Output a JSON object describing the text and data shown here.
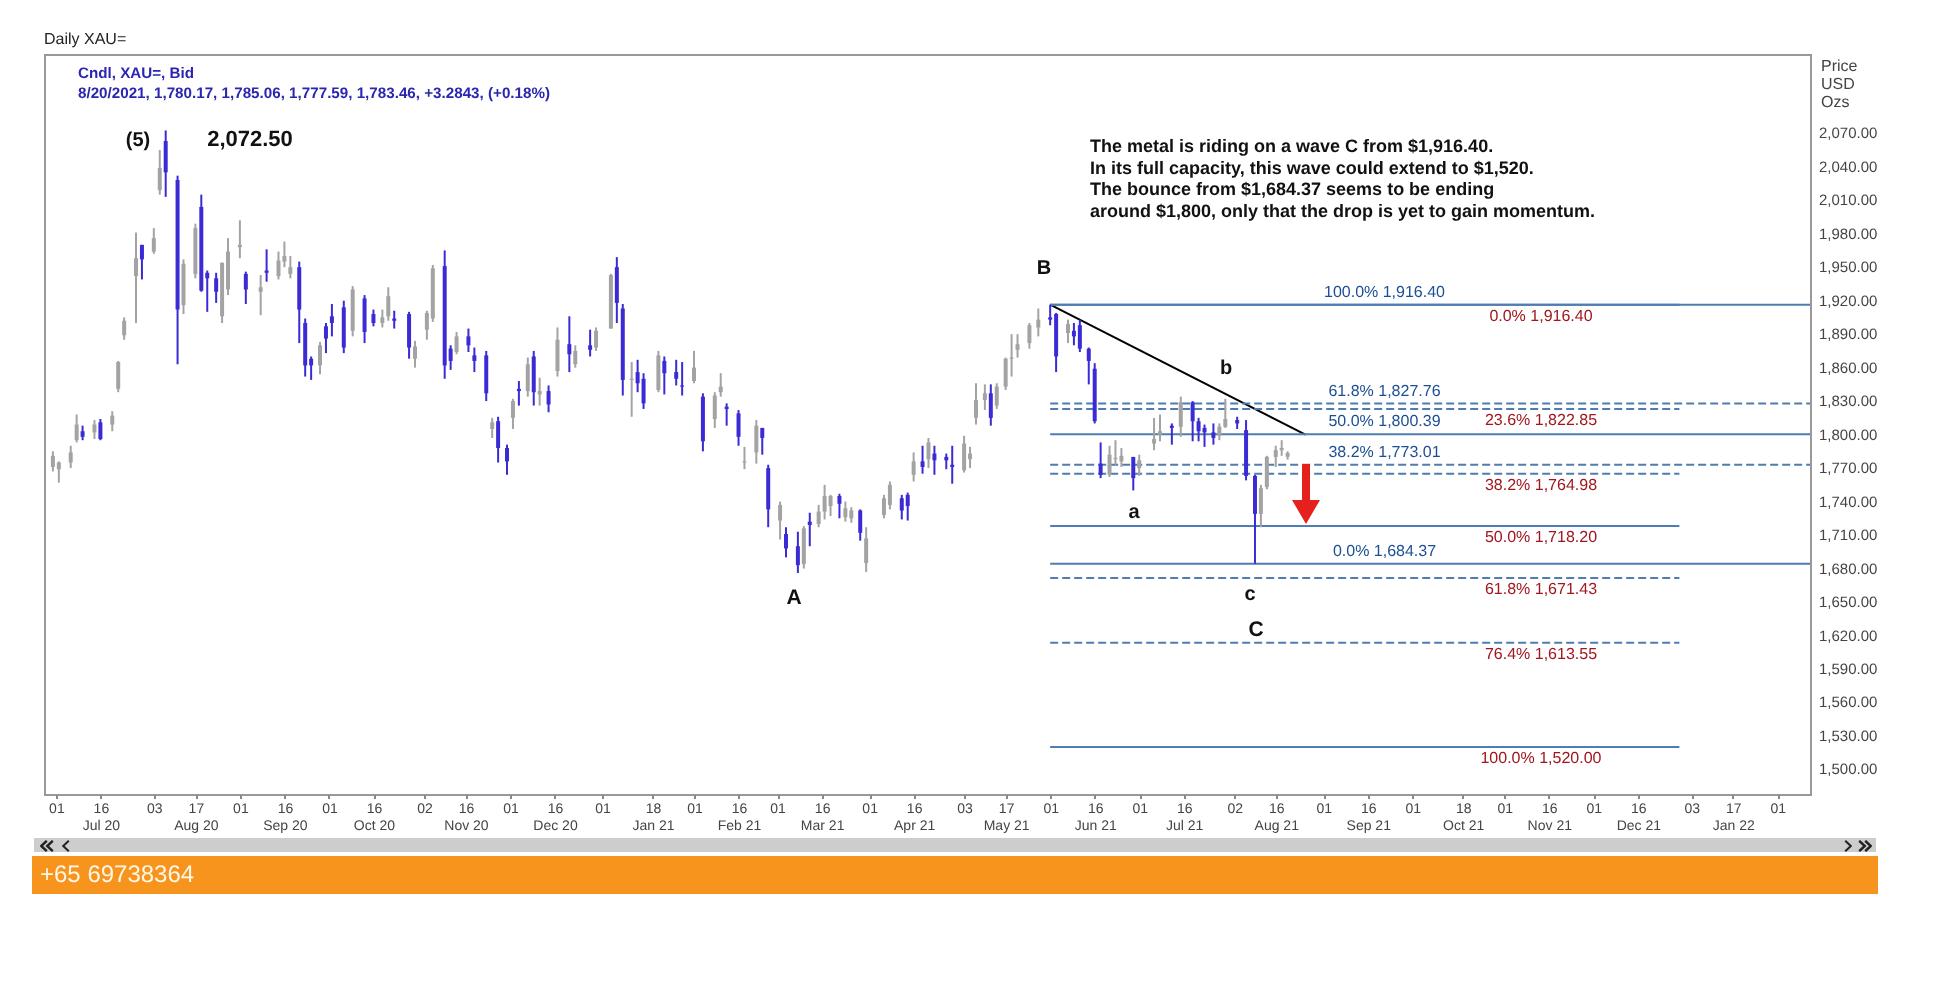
{
  "chart_data": {
    "type": "candlestick",
    "title": "Daily XAU=",
    "subtitle": "Cndl, XAU=, Bid",
    "ylabel": "Price USD Ozs",
    "annotations": [
      "8/20/2021, 1,780.17, 1,785.06, 1,777.59, 1,783.46, +3.2843, (+0.18%)",
      "(5)",
      "2,072.50",
      "B",
      "b",
      "a",
      "A",
      "c",
      "C",
      "The metal is riding on a wave C from $1,916.40.",
      "In its full capacity, this wave could extend to $1,520.",
      "The bounce from $1,684.37 seems to be ending",
      "around $1,800, only that the drop is yet to gain momentum.",
      "+65 69738364"
    ],
    "x": [
      "2020-06-30",
      "2020-07-02",
      "2020-07-06",
      "2020-07-08",
      "2020-07-10",
      "2020-07-14",
      "2020-07-16",
      "2020-07-20",
      "2020-07-22",
      "2020-07-24",
      "2020-07-28",
      "2020-07-30",
      "2020-08-03",
      "2020-08-05",
      "2020-08-07",
      "2020-08-11",
      "2020-08-13",
      "2020-08-17",
      "2020-08-19",
      "2020-08-21",
      "2020-08-24",
      "2020-08-26",
      "2020-08-28",
      "2020-09-01",
      "2020-09-03",
      "2020-09-08",
      "2020-09-10",
      "2020-09-14",
      "2020-09-16",
      "2020-09-18",
      "2020-09-21",
      "2020-09-23",
      "2020-09-25",
      "2020-09-28",
      "2020-09-30",
      "2020-10-02",
      "2020-10-06",
      "2020-10-09",
      "2020-10-13",
      "2020-10-16",
      "2020-10-19",
      "2020-10-21",
      "2020-10-23",
      "2020-10-28",
      "2020-10-30",
      "2020-11-03",
      "2020-11-05",
      "2020-11-09",
      "2020-11-11",
      "2020-11-13",
      "2020-11-17",
      "2020-11-19",
      "2020-11-23",
      "2020-11-25",
      "2020-11-27",
      "2020-11-30",
      "2020-12-02",
      "2020-12-04",
      "2020-12-07",
      "2020-12-09",
      "2020-12-11",
      "2020-12-14",
      "2020-12-17",
      "2020-12-21",
      "2020-12-23",
      "2020-12-28",
      "2020-12-30",
      "2021-01-04",
      "2021-01-06",
      "2021-01-08",
      "2021-01-11",
      "2021-01-13",
      "2021-01-15",
      "2021-01-20",
      "2021-01-22",
      "2021-01-26",
      "2021-01-28",
      "2021-02-01",
      "2021-02-04",
      "2021-02-08",
      "2021-02-10",
      "2021-02-12",
      "2021-02-16",
      "2021-02-18",
      "2021-02-22",
      "2021-02-24",
      "2021-02-26",
      "2021-03-02",
      "2021-03-04",
      "2021-03-08",
      "2021-03-10",
      "2021-03-12",
      "2021-03-15",
      "2021-03-17",
      "2021-03-19",
      "2021-03-22",
      "2021-03-24",
      "2021-03-26",
      "2021-03-29",
      "2021-03-31",
      "2021-04-06",
      "2021-04-08",
      "2021-04-12",
      "2021-04-14",
      "2021-04-16",
      "2021-04-19",
      "2021-04-21",
      "2021-04-23",
      "2021-04-27",
      "2021-04-29",
      "2021-05-03",
      "2021-05-05",
      "2021-05-07",
      "2021-05-10",
      "2021-05-12",
      "2021-05-14",
      "2021-05-17",
      "2021-05-19",
      "2021-05-21",
      "2021-05-25",
      "2021-05-28",
      "2021-06-01",
      "2021-06-03",
      "2021-06-07",
      "2021-06-09",
      "2021-06-11",
      "2021-06-14",
      "2021-06-16",
      "2021-06-18",
      "2021-06-21",
      "2021-06-23",
      "2021-06-25",
      "2021-06-29",
      "2021-07-01",
      "2021-07-06",
      "2021-07-08",
      "2021-07-12",
      "2021-07-15",
      "2021-07-19",
      "2021-07-21",
      "2021-07-23",
      "2021-07-26",
      "2021-07-28",
      "2021-07-30",
      "2021-08-03",
      "2021-08-06",
      "2021-08-09",
      "2021-08-11",
      "2021-08-13",
      "2021-08-16",
      "2021-08-18",
      "2021-08-20"
    ],
    "ohlc": [
      [
        1771,
        1785,
        1767,
        1781
      ],
      [
        1769,
        1776,
        1757,
        1775
      ],
      [
        1775,
        1790,
        1770,
        1784
      ],
      [
        1795,
        1818,
        1793,
        1809
      ],
      [
        1803,
        1808,
        1795,
        1798
      ],
      [
        1802,
        1813,
        1796,
        1809
      ],
      [
        1811,
        1814,
        1795,
        1796
      ],
      [
        1809,
        1821,
        1803,
        1817
      ],
      [
        1841,
        1866,
        1838,
        1865
      ],
      [
        1889,
        1905,
        1885,
        1902
      ],
      [
        1942,
        1981,
        1900,
        1958
      ],
      [
        1970,
        1970,
        1939,
        1957
      ],
      [
        1964,
        1985,
        1962,
        1976
      ],
      [
        2019,
        2055,
        2015,
        2039
      ],
      [
        2063,
        2072.5,
        2013,
        2035
      ],
      [
        2028,
        2032,
        1863,
        1912
      ],
      [
        1916,
        1957,
        1908,
        1953
      ],
      [
        1944,
        1989,
        1940,
        1985
      ],
      [
        2004,
        2015,
        1928,
        1929
      ],
      [
        1945,
        1947,
        1910,
        1940
      ],
      [
        1940,
        1945,
        1918,
        1928
      ],
      [
        1906,
        1954,
        1900,
        1954
      ],
      [
        1930,
        1976,
        1925,
        1964
      ],
      [
        1968,
        1992,
        1958,
        1970
      ],
      [
        1944,
        1946,
        1917,
        1930
      ],
      [
        1928,
        1943,
        1907,
        1932
      ],
      [
        1947,
        1966,
        1937,
        1945
      ],
      [
        1942,
        1964,
        1939,
        1956
      ],
      [
        1955,
        1973,
        1950,
        1960
      ],
      [
        1944,
        1960,
        1940,
        1950
      ],
      [
        1950,
        1955,
        1882,
        1912
      ],
      [
        1900,
        1904,
        1852,
        1862
      ],
      [
        1868,
        1870,
        1849,
        1862
      ],
      [
        1862,
        1883,
        1854,
        1880
      ],
      [
        1897,
        1900,
        1873,
        1886
      ],
      [
        1906,
        1917,
        1888,
        1900
      ],
      [
        1914,
        1920,
        1873,
        1878
      ],
      [
        1893,
        1933,
        1888,
        1930
      ],
      [
        1922,
        1925,
        1882,
        1892
      ],
      [
        1908,
        1912,
        1897,
        1900
      ],
      [
        1900,
        1912,
        1896,
        1905
      ],
      [
        1906,
        1932,
        1902,
        1924
      ],
      [
        1904,
        1911,
        1895,
        1902
      ],
      [
        1908,
        1910,
        1868,
        1878
      ],
      [
        1868,
        1884,
        1860,
        1879
      ],
      [
        1894,
        1911,
        1885,
        1909
      ],
      [
        1904,
        1952,
        1901,
        1949
      ],
      [
        1951,
        1965,
        1850,
        1862
      ],
      [
        1877,
        1880,
        1858,
        1866
      ],
      [
        1874,
        1892,
        1872,
        1888
      ],
      [
        1888,
        1895,
        1874,
        1880
      ],
      [
        1871,
        1878,
        1856,
        1866
      ],
      [
        1871,
        1875,
        1830,
        1837
      ],
      [
        1805,
        1815,
        1797,
        1811
      ],
      [
        1812,
        1816,
        1775,
        1788
      ],
      [
        1788,
        1791,
        1764,
        1776
      ],
      [
        1815,
        1832,
        1805,
        1830
      ],
      [
        1841,
        1848,
        1826,
        1839
      ],
      [
        1839,
        1869,
        1834,
        1863
      ],
      [
        1870,
        1875,
        1826,
        1838
      ],
      [
        1836,
        1851,
        1826,
        1839
      ],
      [
        1839,
        1844,
        1820,
        1827
      ],
      [
        1857,
        1896,
        1852,
        1885
      ],
      [
        1881,
        1906,
        1856,
        1872
      ],
      [
        1863,
        1880,
        1860,
        1875
      ],
      [
        1880,
        1894,
        1870,
        1876
      ],
      [
        1878,
        1896,
        1875,
        1893
      ],
      [
        1895,
        1944,
        1895,
        1943
      ],
      [
        1950,
        1959,
        1900,
        1918
      ],
      [
        1913,
        1917,
        1835,
        1849
      ],
      [
        1849,
        1865,
        1816,
        1850
      ],
      [
        1856,
        1867,
        1838,
        1846
      ],
      [
        1850,
        1855,
        1823,
        1828
      ],
      [
        1840,
        1875,
        1838,
        1871
      ],
      [
        1866,
        1870,
        1836,
        1855
      ],
      [
        1856,
        1867,
        1844,
        1850
      ],
      [
        1844,
        1865,
        1835,
        1843
      ],
      [
        1848,
        1875,
        1846,
        1860
      ],
      [
        1834,
        1837,
        1785,
        1794
      ],
      [
        1814,
        1838,
        1806,
        1835
      ],
      [
        1838,
        1855,
        1834,
        1843
      ],
      [
        1825,
        1828,
        1808,
        1823
      ],
      [
        1819,
        1822,
        1790,
        1798
      ],
      [
        1775,
        1789,
        1769,
        1776
      ],
      [
        1784,
        1813,
        1774,
        1808
      ],
      [
        1806,
        1806,
        1782,
        1797
      ],
      [
        1770,
        1773,
        1717,
        1733
      ],
      [
        1723,
        1740,
        1706,
        1737
      ],
      [
        1711,
        1717,
        1690,
        1698
      ],
      [
        1700,
        1713,
        1676,
        1683
      ],
      [
        1684,
        1718,
        1680,
        1716
      ],
      [
        1722,
        1730,
        1700,
        1719
      ],
      [
        1720,
        1737,
        1717,
        1731
      ],
      [
        1731,
        1755,
        1724,
        1745
      ],
      [
        1736,
        1746,
        1727,
        1745
      ],
      [
        1745,
        1747,
        1725,
        1738
      ],
      [
        1726,
        1740,
        1722,
        1734
      ],
      [
        1725,
        1735,
        1721,
        1732
      ],
      [
        1732,
        1733,
        1705,
        1712
      ],
      [
        1685,
        1717,
        1677,
        1707
      ],
      [
        1728,
        1746,
        1725,
        1743
      ],
      [
        1737,
        1758,
        1733,
        1755
      ],
      [
        1743,
        1746,
        1724,
        1732
      ],
      [
        1746,
        1748,
        1723,
        1736
      ],
      [
        1764,
        1784,
        1758,
        1776
      ],
      [
        1776,
        1790,
        1765,
        1771
      ],
      [
        1778,
        1797,
        1770,
        1793
      ],
      [
        1783,
        1790,
        1764,
        1777
      ],
      [
        1780,
        1783,
        1769,
        1777
      ],
      [
        1773,
        1790,
        1756,
        1771
      ],
      [
        1768,
        1799,
        1766,
        1792
      ],
      [
        1778,
        1789,
        1770,
        1783
      ],
      [
        1815,
        1846,
        1809,
        1831
      ],
      [
        1831,
        1845,
        1822,
        1837
      ],
      [
        1837,
        1845,
        1808,
        1815
      ],
      [
        1826,
        1846,
        1823,
        1843
      ],
      [
        1843,
        1869,
        1840,
        1868
      ],
      [
        1868,
        1890,
        1852,
        1869
      ],
      [
        1876,
        1890,
        1869,
        1881
      ],
      [
        1882,
        1900,
        1877,
        1898
      ],
      [
        1896,
        1913,
        1888,
        1903
      ],
      [
        1905,
        1916.4,
        1898,
        1903
      ],
      [
        1908,
        1909,
        1856,
        1870
      ],
      [
        1891,
        1903,
        1882,
        1899
      ],
      [
        1893,
        1900,
        1880,
        1888
      ],
      [
        1898,
        1903,
        1874,
        1877
      ],
      [
        1877,
        1878,
        1845,
        1866
      ],
      [
        1859,
        1864,
        1810,
        1812
      ],
      [
        1774,
        1793,
        1761,
        1764
      ],
      [
        1764,
        1790,
        1762,
        1782
      ],
      [
        1778,
        1795,
        1773,
        1779
      ],
      [
        1776,
        1788,
        1771,
        1781
      ],
      [
        1780,
        1780,
        1750,
        1761
      ],
      [
        1770,
        1782,
        1763,
        1777
      ],
      [
        1792,
        1815,
        1786,
        1796
      ],
      [
        1800,
        1818,
        1794,
        1803
      ],
      [
        1808,
        1810,
        1791,
        1806
      ],
      [
        1807,
        1834,
        1798,
        1829
      ],
      [
        1829,
        1830,
        1794,
        1812
      ],
      [
        1812,
        1815,
        1794,
        1803
      ],
      [
        1806,
        1809,
        1789,
        1802
      ],
      [
        1802,
        1810,
        1791,
        1797
      ],
      [
        1799,
        1810,
        1795,
        1807
      ],
      [
        1807,
        1832,
        1806,
        1814
      ],
      [
        1813,
        1816,
        1805,
        1810
      ],
      [
        1804,
        1813,
        1759,
        1763
      ],
      [
        1763,
        1764,
        1684.37,
        1729
      ],
      [
        1729,
        1755,
        1717,
        1752
      ],
      [
        1753,
        1781,
        1751,
        1780
      ],
      [
        1780,
        1790,
        1771,
        1786
      ],
      [
        1786,
        1795,
        1781,
        1788
      ],
      [
        1780.17,
        1785.06,
        1777.59,
        1783.46
      ]
    ],
    "colors": [
      "#a3a3a3",
      "#a3a3a3",
      "#a3a3a3",
      "#a3a3a3",
      "#3a2bd4",
      "#a3a3a3",
      "#3a2bd4",
      "#a3a3a3",
      "#a3a3a3",
      "#a3a3a3",
      "#a3a3a3",
      "#3a2bd4",
      "#a3a3a3",
      "#a3a3a3",
      "#3a2bd4",
      "#3a2bd4",
      "#a3a3a3",
      "#a3a3a3",
      "#3a2bd4",
      "#3a2bd4",
      "#3a2bd4",
      "#a3a3a3",
      "#a3a3a3",
      "#a3a3a3",
      "#3a2bd4",
      "#a3a3a3",
      "#3a2bd4",
      "#a3a3a3",
      "#a3a3a3",
      "#a3a3a3",
      "#3a2bd4",
      "#3a2bd4",
      "#3a2bd4",
      "#a3a3a3",
      "#3a2bd4",
      "#3a2bd4",
      "#3a2bd4",
      "#a3a3a3",
      "#3a2bd4",
      "#3a2bd4",
      "#a3a3a3",
      "#a3a3a3",
      "#3a2bd4",
      "#3a2bd4",
      "#a3a3a3",
      "#a3a3a3",
      "#a3a3a3",
      "#3a2bd4",
      "#3a2bd4",
      "#a3a3a3",
      "#3a2bd4",
      "#3a2bd4",
      "#3a2bd4",
      "#a3a3a3",
      "#3a2bd4",
      "#3a2bd4",
      "#a3a3a3",
      "#3a2bd4",
      "#a3a3a3",
      "#3a2bd4",
      "#a3a3a3",
      "#3a2bd4",
      "#a3a3a3",
      "#3a2bd4",
      "#a3a3a3",
      "#3a2bd4",
      "#a3a3a3",
      "#a3a3a3",
      "#3a2bd4",
      "#3a2bd4",
      "#a3a3a3",
      "#3a2bd4",
      "#3a2bd4",
      "#a3a3a3",
      "#3a2bd4",
      "#3a2bd4",
      "#3a2bd4",
      "#a3a3a3",
      "#3a2bd4",
      "#a3a3a3",
      "#a3a3a3",
      "#3a2bd4",
      "#3a2bd4",
      "#a3a3a3",
      "#a3a3a3",
      "#3a2bd4",
      "#3a2bd4",
      "#a3a3a3",
      "#3a2bd4",
      "#3a2bd4",
      "#a3a3a3",
      "#3a2bd4",
      "#a3a3a3",
      "#a3a3a3",
      "#a3a3a3",
      "#3a2bd4",
      "#a3a3a3",
      "#a3a3a3",
      "#3a2bd4",
      "#a3a3a3",
      "#a3a3a3",
      "#a3a3a3",
      "#3a2bd4",
      "#3a2bd4",
      "#a3a3a3",
      "#3a2bd4",
      "#a3a3a3",
      "#3a2bd4",
      "#3a2bd4",
      "#3a2bd4",
      "#a3a3a3",
      "#a3a3a3",
      "#a3a3a3",
      "#a3a3a3",
      "#3a2bd4",
      "#a3a3a3",
      "#a3a3a3",
      "#a3a3a3",
      "#a3a3a3",
      "#a3a3a3",
      "#a3a3a3",
      "#3a2bd4",
      "#3a2bd4",
      "#a3a3a3",
      "#3a2bd4",
      "#3a2bd4",
      "#3a2bd4",
      "#3a2bd4",
      "#3a2bd4",
      "#a3a3a3",
      "#a3a3a3",
      "#a3a3a3",
      "#3a2bd4",
      "#a3a3a3",
      "#a3a3a3",
      "#a3a3a3",
      "#3a2bd4",
      "#a3a3a3",
      "#3a2bd4",
      "#3a2bd4",
      "#3a2bd4",
      "#3a2bd4",
      "#a3a3a3",
      "#a3a3a3",
      "#3a2bd4",
      "#3a2bd4",
      "#3a2bd4",
      "#a3a3a3",
      "#a3a3a3",
      "#a3a3a3",
      "#a3a3a3",
      "#a3a3a3"
    ],
    "series": [
      {
        "type": "line",
        "color": "#000000",
        "x": [
          "2021-06-01",
          "2021-08-26"
        ],
        "values": [
          1916.4,
          1800
        ]
      },
      {
        "type": "line",
        "name": "100.0% 1,916.40",
        "color": "#4f7db0",
        "x": [
          "2021-06-01",
          "2022-02-12"
        ],
        "values": [
          1916.4,
          1916.4
        ]
      },
      {
        "type": "line",
        "name": "61.8% 1,827.76",
        "color": "#4f7db0",
        "line_style": "dashed",
        "x": [
          "2021-06-01",
          "2022-02-12"
        ],
        "values": [
          1827.76,
          1827.76
        ]
      },
      {
        "type": "line",
        "name": "50.0% 1,800.39",
        "color": "#4f7db0",
        "x": [
          "2021-06-01",
          "2022-02-12"
        ],
        "values": [
          1800.39,
          1800.39
        ]
      },
      {
        "type": "line",
        "name": "38.2% 1,773.01",
        "color": "#4f7db0",
        "line_style": "dashed",
        "x": [
          "2021-06-01",
          "2022-02-12"
        ],
        "values": [
          1773.01,
          1773.01
        ]
      },
      {
        "type": "line",
        "name": "0.0% 1,684.37",
        "color": "#4f7db0",
        "x": [
          "2021-06-01",
          "2022-02-12"
        ],
        "values": [
          1684.37,
          1684.37
        ]
      },
      {
        "type": "line",
        "name": "0.0% 1,916.40",
        "color": "#4f7db0",
        "x": [
          "2021-06-01",
          "2021-12-30"
        ],
        "values": [
          1916.4,
          1916.4
        ]
      },
      {
        "type": "line",
        "name": "23.6% 1,822.85",
        "color": "#4f7db0",
        "line_style": "dashed",
        "x": [
          "2021-06-01",
          "2021-12-30"
        ],
        "values": [
          1822.85,
          1822.85
        ]
      },
      {
        "type": "line",
        "name": "38.2% 1,764.98",
        "color": "#4f7db0",
        "line_style": "dashed",
        "x": [
          "2021-06-01",
          "2021-12-30"
        ],
        "values": [
          1764.98,
          1764.98
        ]
      },
      {
        "type": "line",
        "name": "50.0% 1,718.20",
        "color": "#4f7db0",
        "x": [
          "2021-06-01",
          "2021-12-30"
        ],
        "values": [
          1718.2,
          1718.2
        ]
      },
      {
        "type": "line",
        "name": "61.8% 1,671.43",
        "color": "#4f7db0",
        "line_style": "dashed",
        "x": [
          "2021-06-01",
          "2021-12-30"
        ],
        "values": [
          1671.43,
          1671.43
        ]
      },
      {
        "type": "line",
        "name": "76.4% 1,613.55",
        "color": "#4f7db0",
        "line_style": "dashed",
        "x": [
          "2021-06-01",
          "2021-12-30"
        ],
        "values": [
          1613.55,
          1613.55
        ]
      },
      {
        "type": "line",
        "name": "100.0% 1,520.00",
        "color": "#4f7db0",
        "x": [
          "2021-06-01",
          "2021-12-30"
        ],
        "values": [
          1520,
          1520
        ]
      }
    ],
    "xlim": [
      "2020-06-27",
      "2022-02-12"
    ],
    "ylim": [
      1478,
      2141
    ],
    "xticks": [
      {
        "value": "2020-07-01",
        "label": "01"
      },
      {
        "value": "2020-07-16",
        "label": "16 Jul 20"
      },
      {
        "value": "2020-08-03",
        "label": "03"
      },
      {
        "value": "2020-08-17",
        "label": "17 Aug 20"
      },
      {
        "value": "2020-09-01",
        "label": "01"
      },
      {
        "value": "2020-09-16",
        "label": "16 Sep 20"
      },
      {
        "value": "2020-10-01",
        "label": "01"
      },
      {
        "value": "2020-10-16",
        "label": "16 Oct 20"
      },
      {
        "value": "2020-11-02",
        "label": "02"
      },
      {
        "value": "2020-11-16",
        "label": "16 Nov 20"
      },
      {
        "value": "2020-12-01",
        "label": "01"
      },
      {
        "value": "2020-12-16",
        "label": "16 Dec 20"
      },
      {
        "value": "2021-01-01",
        "label": "01"
      },
      {
        "value": "2021-01-18",
        "label": "18 Jan 21"
      },
      {
        "value": "2021-02-01",
        "label": "01"
      },
      {
        "value": "2021-02-16",
        "label": "16 Feb 21"
      },
      {
        "value": "2021-03-01",
        "label": "01"
      },
      {
        "value": "2021-03-16",
        "label": "16 Mar 21"
      },
      {
        "value": "2021-04-01",
        "label": "01"
      },
      {
        "value": "2021-04-16",
        "label": "16 Apr 21"
      },
      {
        "value": "2021-05-03",
        "label": "03"
      },
      {
        "value": "2021-05-17",
        "label": "17 May 21"
      },
      {
        "value": "2021-06-01",
        "label": "01"
      },
      {
        "value": "2021-06-16",
        "label": "16 Jun 21"
      },
      {
        "value": "2021-07-01",
        "label": "01"
      },
      {
        "value": "2021-07-16",
        "label": "16 Jul 21"
      },
      {
        "value": "2021-08-02",
        "label": "02"
      },
      {
        "value": "2021-08-16",
        "label": "16 Aug 21"
      },
      {
        "value": "2021-09-01",
        "label": "01"
      },
      {
        "value": "2021-09-16",
        "label": "16 Sep 21"
      },
      {
        "value": "2021-10-01",
        "label": "01"
      },
      {
        "value": "2021-10-18",
        "label": "18 Oct 21"
      },
      {
        "value": "2021-11-01",
        "label": "01"
      },
      {
        "value": "2021-11-16",
        "label": "16 Nov 21"
      },
      {
        "value": "2021-12-01",
        "label": "01"
      },
      {
        "value": "2021-12-16",
        "label": "16 Dec 21"
      },
      {
        "value": "2022-01-03",
        "label": "03"
      },
      {
        "value": "2022-01-17",
        "label": "17 Jan 22"
      },
      {
        "value": "2022-02-01",
        "label": "01"
      }
    ],
    "yticks": [
      {
        "value": 1500,
        "label": "1,500.00"
      },
      {
        "value": 1530,
        "label": "1,530.00"
      },
      {
        "value": 1560,
        "label": "1,560.00"
      },
      {
        "value": 1590,
        "label": "1,590.00"
      },
      {
        "value": 1620,
        "label": "1,620.00"
      },
      {
        "value": 1650,
        "label": "1,650.00"
      },
      {
        "value": 1680,
        "label": "1,680.00"
      },
      {
        "value": 1710,
        "label": "1,710.00"
      },
      {
        "value": 1740,
        "label": "1,740.00"
      },
      {
        "value": 1770,
        "label": "1,770.00"
      },
      {
        "value": 1800,
        "label": "1,800.00"
      },
      {
        "value": 1830,
        "label": "1,830.00"
      },
      {
        "value": 1860,
        "label": "1,860.00"
      },
      {
        "value": 1890,
        "label": "1,890.00"
      },
      {
        "value": 1920,
        "label": "1,920.00"
      },
      {
        "value": 1950,
        "label": "1,950.00"
      },
      {
        "value": 1980,
        "label": "1,980.00"
      },
      {
        "value": 2010,
        "label": "2,010.00"
      },
      {
        "value": 2040,
        "label": "2,040.00"
      },
      {
        "value": 2070,
        "label": "2,070.00"
      }
    ]
  }
}
